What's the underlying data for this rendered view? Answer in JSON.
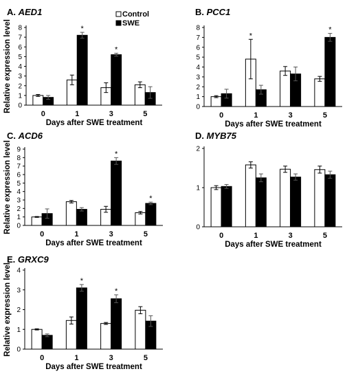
{
  "legend": {
    "control_label": "Control",
    "swe_label": "SWE",
    "control_color": "#ffffff",
    "swe_color": "#000000"
  },
  "chart_data": [
    {
      "type": "bar",
      "panel": "A.",
      "gene": "AED1",
      "title": "A. AED1",
      "xlabel": "Days after SWE treatment",
      "ylabel": "Relative expression level",
      "categories": [
        "0",
        "1",
        "3",
        "5"
      ],
      "yticks": [
        "0",
        "1",
        "2",
        "3",
        "4",
        "5",
        "6",
        "7",
        "8"
      ],
      "ylim": [
        0,
        8
      ],
      "series": [
        {
          "name": "Control",
          "values": [
            1.0,
            2.6,
            1.8,
            2.1
          ],
          "errors": [
            0.1,
            0.5,
            0.5,
            0.3
          ],
          "significant": [
            false,
            false,
            false,
            false
          ]
        },
        {
          "name": "SWE",
          "values": [
            0.8,
            7.2,
            5.2,
            1.3
          ],
          "errors": [
            0.2,
            0.3,
            0.15,
            0.6
          ],
          "significant": [
            false,
            true,
            true,
            false
          ]
        }
      ],
      "marker_text": "*",
      "legend": "top-right"
    },
    {
      "type": "bar",
      "panel": "B.",
      "gene": "PCC1",
      "title": "B. PCC1",
      "xlabel": "Days after SWE treatment",
      "ylabel": "",
      "categories": [
        "0",
        "1",
        "3",
        "5"
      ],
      "yticks": [
        "0",
        "1",
        "2",
        "3",
        "4",
        "5",
        "6",
        "7",
        "8"
      ],
      "ylim": [
        0,
        8
      ],
      "series": [
        {
          "name": "Control",
          "values": [
            1.0,
            4.8,
            3.6,
            2.8
          ],
          "errors": [
            0.1,
            2.0,
            0.45,
            0.25
          ],
          "significant": [
            false,
            true,
            false,
            false
          ]
        },
        {
          "name": "SWE",
          "values": [
            1.3,
            1.7,
            3.3,
            7.0
          ],
          "errors": [
            0.45,
            0.45,
            0.7,
            0.4
          ],
          "significant": [
            false,
            false,
            false,
            true
          ]
        }
      ],
      "marker_text": "*"
    },
    {
      "type": "bar",
      "panel": "C.",
      "gene": "ACD6",
      "title": "C. ACD6",
      "xlabel": "Days after SWE treatment",
      "ylabel": "Relative expression level",
      "categories": [
        "0",
        "1",
        "3",
        "5"
      ],
      "yticks": [
        "0",
        "1",
        "2",
        "3",
        "4",
        "5",
        "6",
        "7",
        "8",
        "9"
      ],
      "ylim": [
        0,
        9
      ],
      "series": [
        {
          "name": "Control",
          "values": [
            1.0,
            2.8,
            1.9,
            1.5
          ],
          "errors": [
            0.05,
            0.15,
            0.35,
            0.15
          ],
          "significant": [
            false,
            false,
            false,
            false
          ]
        },
        {
          "name": "SWE",
          "values": [
            1.4,
            1.9,
            7.6,
            2.6
          ],
          "errors": [
            0.55,
            0.2,
            0.4,
            0.15
          ],
          "significant": [
            false,
            false,
            true,
            true
          ]
        }
      ],
      "marker_text": "*"
    },
    {
      "type": "bar",
      "panel": "D.",
      "gene": "MYB75",
      "title": "D. MYB75",
      "xlabel": "Days after SWE treatment",
      "ylabel": "",
      "categories": [
        "0",
        "1",
        "3",
        "5"
      ],
      "yticks": [
        "0",
        "1",
        "2"
      ],
      "ylim": [
        0,
        2
      ],
      "series": [
        {
          "name": "Control",
          "values": [
            1.0,
            1.58,
            1.47,
            1.46
          ],
          "errors": [
            0.05,
            0.08,
            0.08,
            0.09
          ],
          "significant": [
            false,
            false,
            false,
            false
          ]
        },
        {
          "name": "SWE",
          "values": [
            1.03,
            1.25,
            1.27,
            1.33
          ],
          "errors": [
            0.05,
            0.1,
            0.08,
            0.09
          ],
          "significant": [
            false,
            false,
            false,
            false
          ]
        }
      ],
      "marker_text": "*"
    },
    {
      "type": "bar",
      "panel": "E.",
      "gene": "GRXC9",
      "title": "E. GRXC9",
      "xlabel": "Days after SWE treatment",
      "ylabel": "Relative expression level",
      "categories": [
        "0",
        "1",
        "3",
        "5"
      ],
      "yticks": [
        "0",
        "1",
        "2",
        "3",
        "4"
      ],
      "ylim": [
        0,
        4
      ],
      "series": [
        {
          "name": "Control",
          "values": [
            1.0,
            1.45,
            1.3,
            1.97
          ],
          "errors": [
            0.03,
            0.18,
            0.05,
            0.18
          ],
          "significant": [
            false,
            false,
            false,
            false
          ]
        },
        {
          "name": "SWE",
          "values": [
            0.7,
            3.1,
            2.55,
            1.42
          ],
          "errors": [
            0.07,
            0.17,
            0.2,
            0.27
          ],
          "significant": [
            false,
            true,
            true,
            false
          ]
        }
      ],
      "marker_text": "*"
    }
  ]
}
